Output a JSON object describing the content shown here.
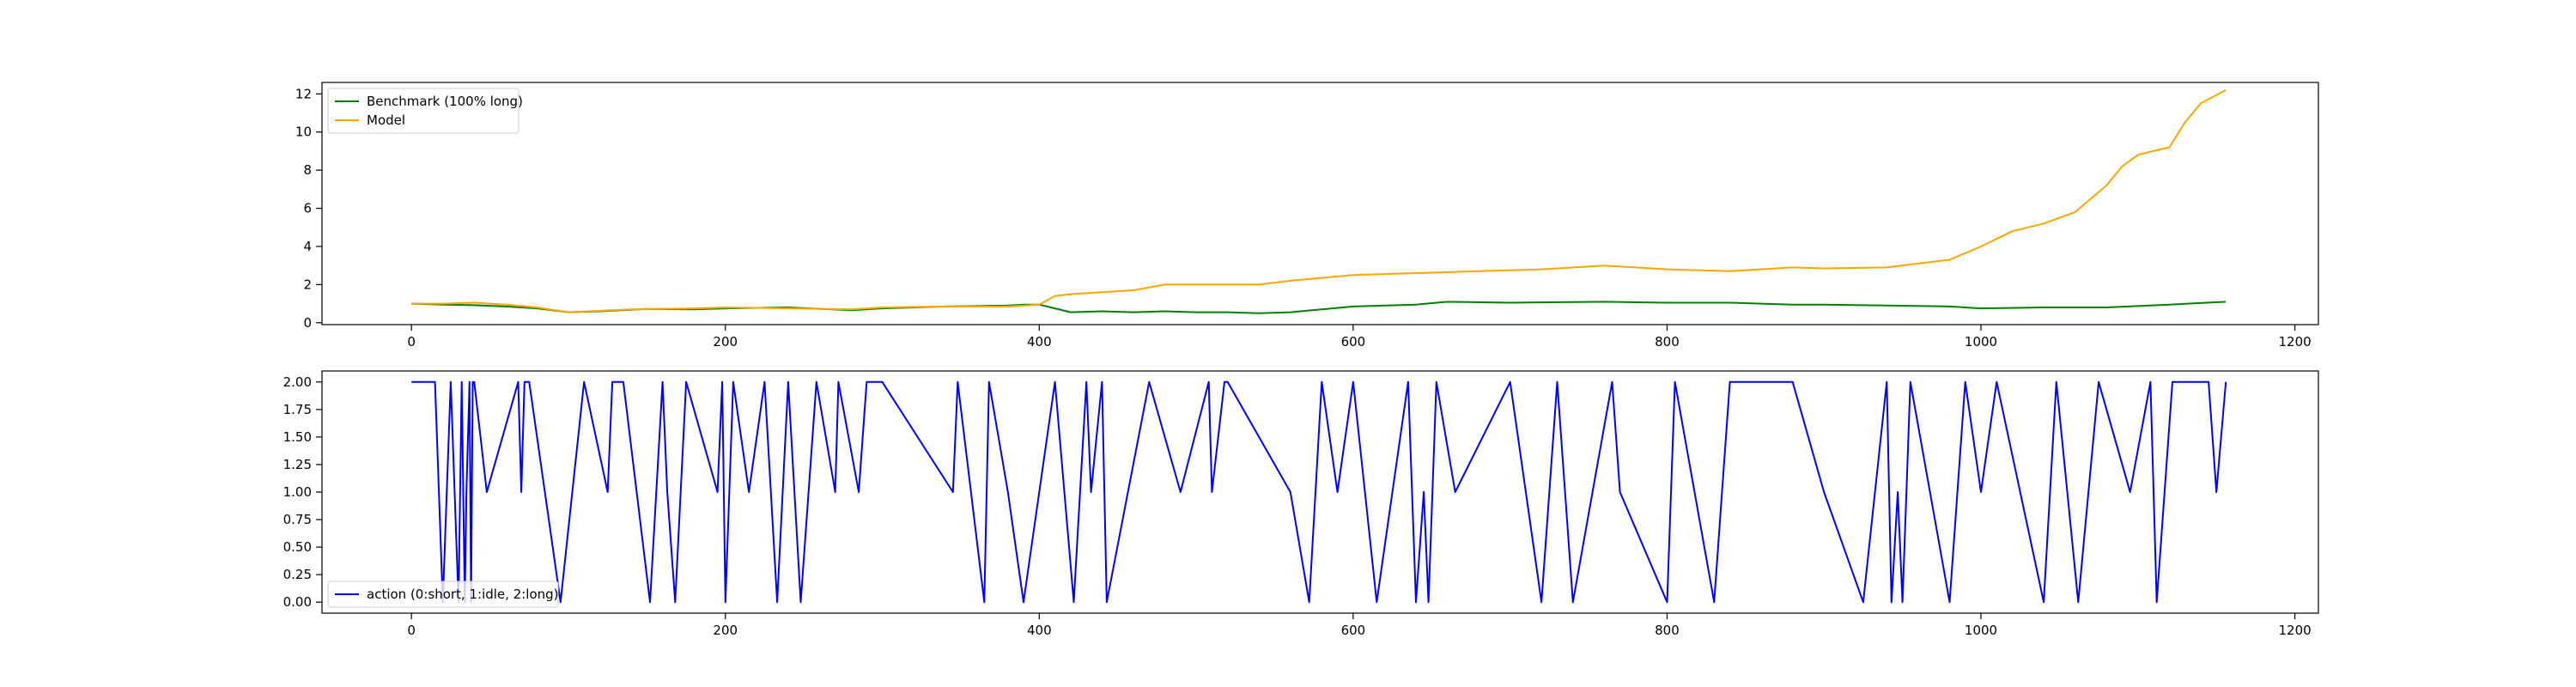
{
  "chart_data": [
    {
      "type": "line",
      "title": "",
      "xlabel": "",
      "ylabel": "",
      "xlim": [
        -57,
        1215
      ],
      "ylim": [
        -0.1,
        12.6
      ],
      "xticks": [
        0,
        200,
        400,
        600,
        800,
        1000,
        1200
      ],
      "yticks": [
        0,
        2,
        4,
        6,
        8,
        10,
        12
      ],
      "xtick_labels": [
        "0",
        "200",
        "400",
        "600",
        "800",
        "1000",
        "1200"
      ],
      "ytick_labels": [
        "0",
        "2",
        "4",
        "6",
        "8",
        "10",
        "12"
      ],
      "grid": false,
      "legend_position": "upper left",
      "series": [
        {
          "name": "Benchmark (100% long)",
          "color": "#008000",
          "x": [
            0,
            20,
            40,
            60,
            70,
            80,
            100,
            120,
            150,
            180,
            200,
            240,
            280,
            300,
            340,
            380,
            390,
            400,
            410,
            420,
            440,
            460,
            480,
            500,
            520,
            540,
            560,
            580,
            600,
            640,
            660,
            700,
            760,
            800,
            840,
            880,
            900,
            940,
            980,
            1000,
            1040,
            1080,
            1120,
            1156
          ],
          "y": [
            1.0,
            0.95,
            0.92,
            0.85,
            0.8,
            0.75,
            0.55,
            0.6,
            0.72,
            0.7,
            0.75,
            0.8,
            0.65,
            0.75,
            0.85,
            0.9,
            0.95,
            0.95,
            0.75,
            0.55,
            0.6,
            0.55,
            0.6,
            0.55,
            0.55,
            0.5,
            0.55,
            0.7,
            0.85,
            0.95,
            1.1,
            1.05,
            1.1,
            1.05,
            1.05,
            0.95,
            0.95,
            0.9,
            0.85,
            0.75,
            0.8,
            0.8,
            0.95,
            1.1
          ]
        },
        {
          "name": "Model",
          "color": "#ffa500",
          "x": [
            0,
            20,
            40,
            60,
            80,
            100,
            140,
            180,
            200,
            240,
            280,
            300,
            340,
            380,
            400,
            410,
            420,
            440,
            460,
            480,
            500,
            540,
            560,
            600,
            640,
            680,
            720,
            760,
            800,
            840,
            880,
            900,
            940,
            960,
            980,
            1000,
            1020,
            1040,
            1060,
            1080,
            1090,
            1100,
            1110,
            1120,
            1130,
            1140,
            1156
          ],
          "y": [
            1.0,
            1.0,
            1.05,
            0.95,
            0.8,
            0.55,
            0.7,
            0.75,
            0.8,
            0.75,
            0.7,
            0.8,
            0.85,
            0.85,
            0.95,
            1.4,
            1.5,
            1.6,
            1.7,
            2.0,
            2.0,
            2.0,
            2.2,
            2.5,
            2.6,
            2.7,
            2.8,
            3.0,
            2.8,
            2.7,
            2.9,
            2.85,
            2.9,
            3.1,
            3.3,
            4.0,
            4.8,
            5.2,
            5.8,
            7.2,
            8.2,
            8.8,
            9.0,
            9.2,
            10.5,
            11.5,
            12.2
          ]
        }
      ]
    },
    {
      "type": "line",
      "title": "",
      "xlabel": "",
      "ylabel": "",
      "xlim": [
        -57,
        1215
      ],
      "ylim": [
        -0.1,
        2.1
      ],
      "xticks": [
        0,
        200,
        400,
        600,
        800,
        1000,
        1200
      ],
      "yticks": [
        0,
        0.25,
        0.5,
        0.75,
        1.0,
        1.25,
        1.5,
        1.75,
        2.0
      ],
      "xtick_labels": [
        "0",
        "200",
        "400",
        "600",
        "800",
        "1000",
        "1200"
      ],
      "ytick_labels": [
        "0.00",
        "0.25",
        "0.50",
        "0.75",
        "1.00",
        "1.25",
        "1.50",
        "1.75",
        "2.00"
      ],
      "grid": false,
      "legend_position": "lower left",
      "series": [
        {
          "name": "action (0:short, 1:idle, 2:long)",
          "color": "#0000ff",
          "x": [
            0,
            15,
            20,
            25,
            30,
            32,
            34,
            35,
            37,
            38,
            39,
            40,
            48,
            68,
            70,
            72,
            74,
            75,
            95,
            110,
            125,
            128,
            135,
            152,
            160,
            163,
            168,
            175,
            195,
            198,
            200,
            205,
            215,
            225,
            233,
            240,
            248,
            258,
            270,
            272,
            285,
            290,
            300,
            345,
            348,
            365,
            368,
            380,
            390,
            410,
            422,
            430,
            433,
            440,
            443,
            470,
            490,
            508,
            510,
            518,
            520,
            560,
            572,
            580,
            590,
            600,
            615,
            635,
            640,
            645,
            648,
            653,
            665,
            700,
            720,
            730,
            740,
            765,
            770,
            800,
            805,
            830,
            840,
            850,
            880,
            900,
            925,
            940,
            943,
            947,
            950,
            955,
            980,
            990,
            1000,
            1010,
            1040,
            1048,
            1062,
            1075,
            1095,
            1108,
            1112,
            1122,
            1145,
            1150,
            1156
          ],
          "y": [
            2,
            2,
            0,
            2,
            0,
            2,
            0,
            1,
            2,
            0,
            2,
            2,
            1,
            2,
            1,
            2,
            2,
            2,
            0,
            2,
            1,
            2,
            2,
            0,
            2,
            1,
            0,
            2,
            1,
            2,
            0,
            2,
            1,
            2,
            0,
            2,
            0,
            2,
            1,
            2,
            1,
            2,
            2,
            1,
            2,
            0,
            2,
            1,
            0,
            2,
            0,
            2,
            1,
            2,
            0,
            2,
            1,
            2,
            1,
            2,
            2,
            1,
            0,
            2,
            1,
            2,
            0,
            2,
            0,
            1,
            0,
            2,
            1,
            2,
            0,
            2,
            0,
            2,
            1,
            0,
            2,
            0,
            2,
            2,
            2,
            1,
            0,
            2,
            0,
            1,
            0,
            2,
            0,
            2,
            1,
            2,
            0,
            2,
            0,
            2,
            1,
            2,
            0,
            2,
            2,
            1,
            2
          ]
        }
      ]
    }
  ]
}
